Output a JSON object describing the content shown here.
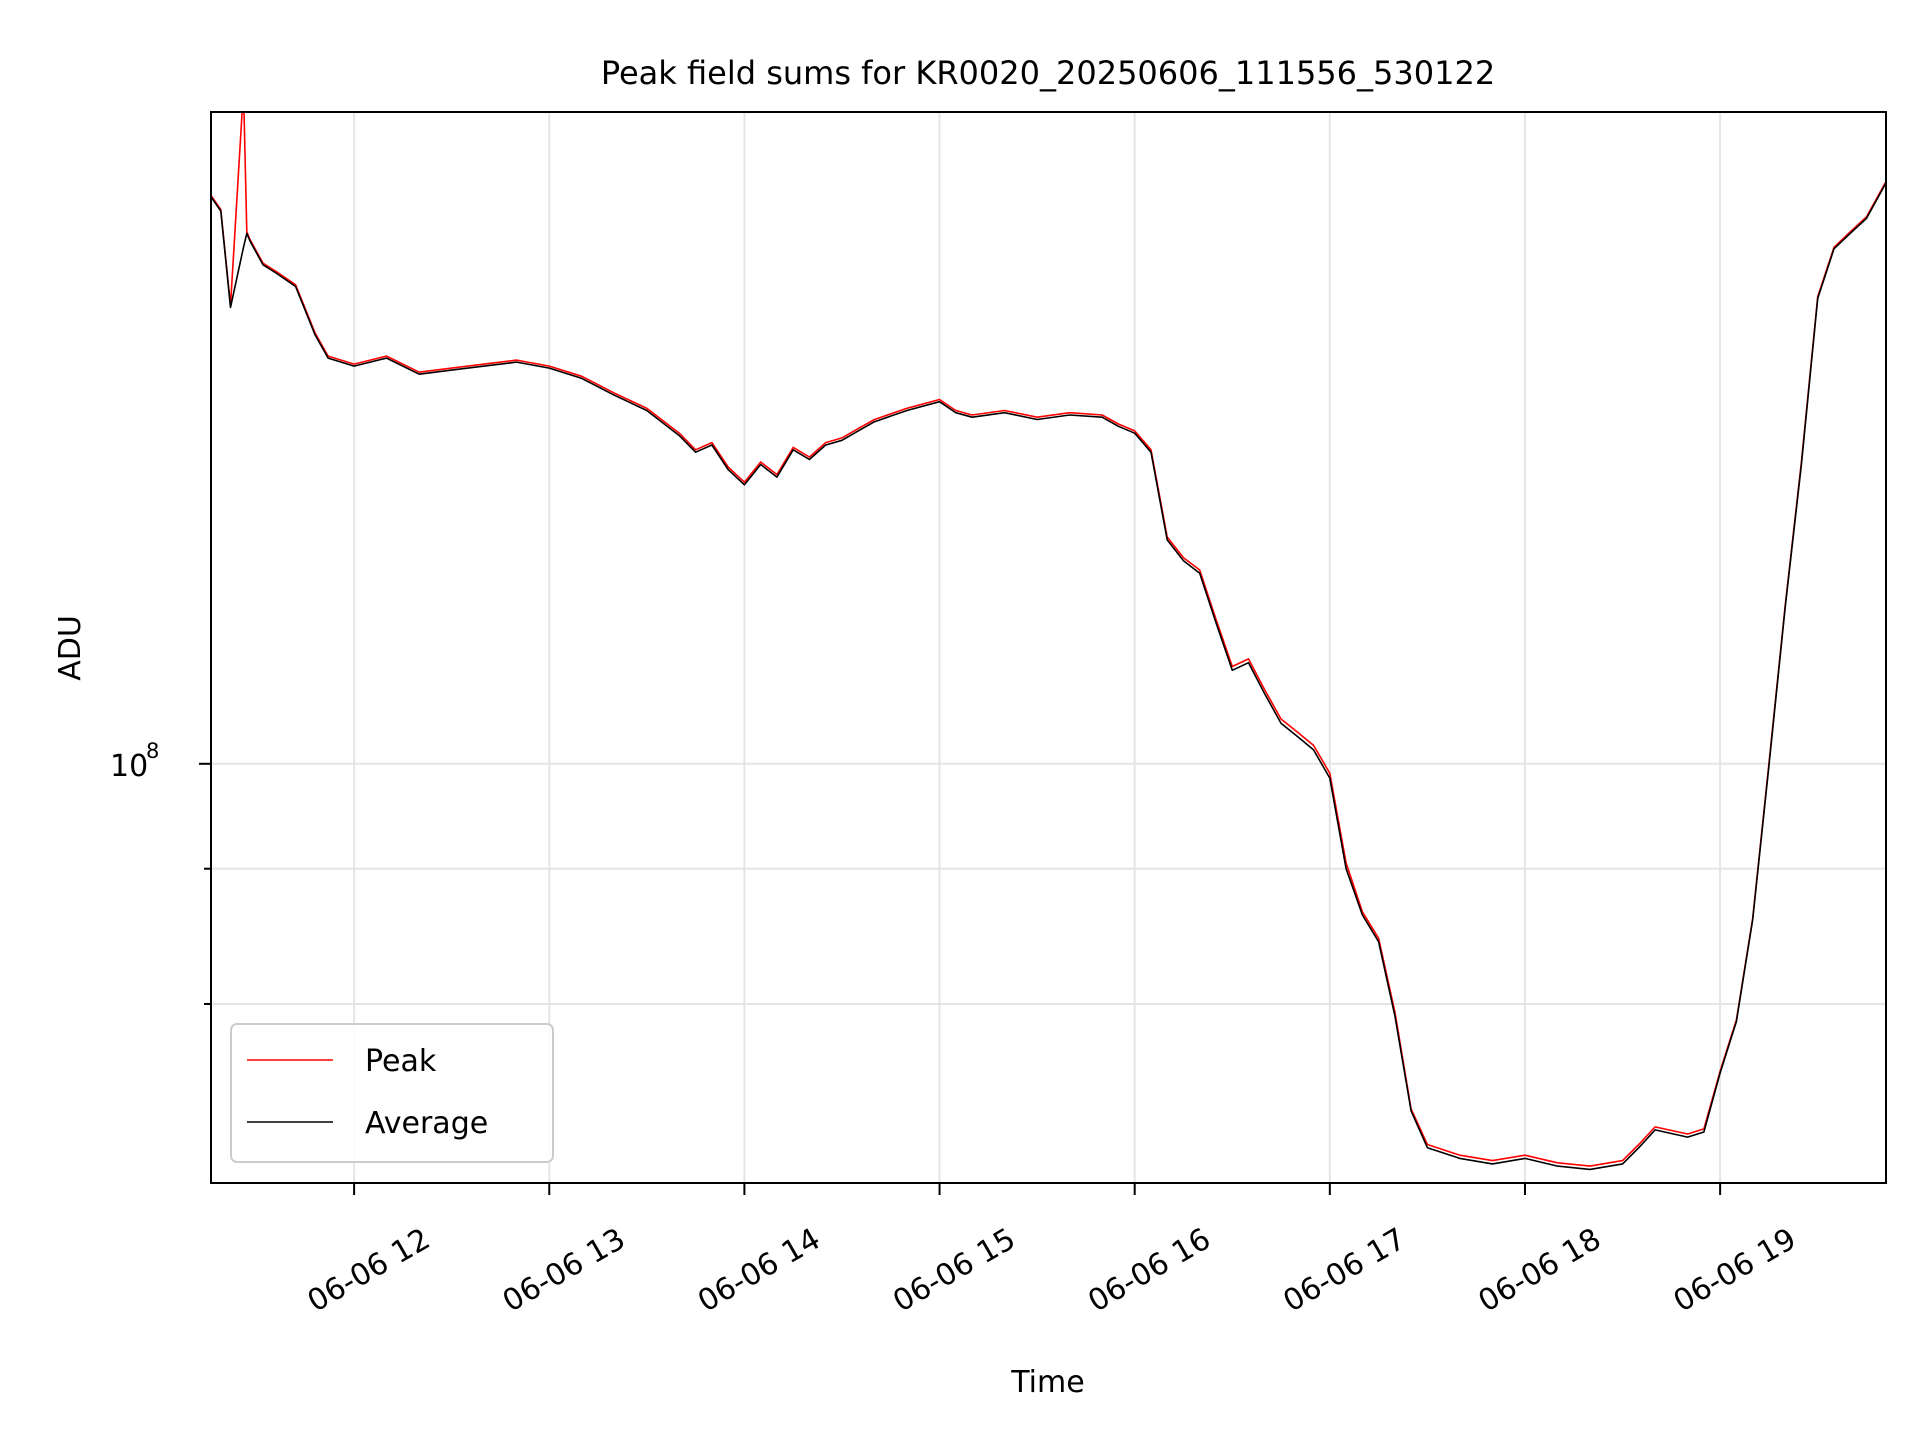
{
  "chart_data": {
    "type": "line",
    "title": "Peak field sums for KR0020_20250606_111556_530122",
    "xlabel": "Time",
    "ylabel": "ADU",
    "y_scale": "log",
    "x_format": "%m-%d %H",
    "xlim": [
      "2025-06-06 11:16",
      "2025-06-06 19:51"
    ],
    "ylim": [
      41000000,
      400000000
    ],
    "xticks": [
      {
        "value": "2025-06-06 12:00",
        "label": "06-06 12"
      },
      {
        "value": "2025-06-06 13:00",
        "label": "06-06 13"
      },
      {
        "value": "2025-06-06 14:00",
        "label": "06-06 14"
      },
      {
        "value": "2025-06-06 15:00",
        "label": "06-06 15"
      },
      {
        "value": "2025-06-06 16:00",
        "label": "06-06 16"
      },
      {
        "value": "2025-06-06 17:00",
        "label": "06-06 17"
      },
      {
        "value": "2025-06-06 18:00",
        "label": "06-06 18"
      },
      {
        "value": "2025-06-06 19:00",
        "label": "06-06 19"
      }
    ],
    "yticks_major": [
      {
        "value": 100000000,
        "base": "10",
        "exp": "8"
      }
    ],
    "yticks_minor": [
      60000000,
      80000000
    ],
    "grid": true,
    "legend_position": "lower-left",
    "series": [
      {
        "name": "Peak",
        "color": "#ff0000",
        "x": [
          "2025-06-06 11:16",
          "2025-06-06 11:19",
          "2025-06-06 11:22",
          "2025-06-06 11:26",
          "2025-06-06 11:27",
          "2025-06-06 11:28",
          "2025-06-06 11:32",
          "2025-06-06 11:36",
          "2025-06-06 11:42",
          "2025-06-06 11:48",
          "2025-06-06 11:52",
          "2025-06-06 11:56",
          "2025-06-06 12:00",
          "2025-06-06 12:10",
          "2025-06-06 12:20",
          "2025-06-06 12:30",
          "2025-06-06 12:40",
          "2025-06-06 12:50",
          "2025-06-06 13:00",
          "2025-06-06 13:10",
          "2025-06-06 13:20",
          "2025-06-06 13:30",
          "2025-06-06 13:40",
          "2025-06-06 13:45",
          "2025-06-06 13:50",
          "2025-06-06 13:55",
          "2025-06-06 14:00",
          "2025-06-06 14:05",
          "2025-06-06 14:10",
          "2025-06-06 14:15",
          "2025-06-06 14:20",
          "2025-06-06 14:25",
          "2025-06-06 14:30",
          "2025-06-06 14:35",
          "2025-06-06 14:40",
          "2025-06-06 14:50",
          "2025-06-06 15:00",
          "2025-06-06 15:05",
          "2025-06-06 15:10",
          "2025-06-06 15:20",
          "2025-06-06 15:30",
          "2025-06-06 15:40",
          "2025-06-06 15:50",
          "2025-06-06 15:55",
          "2025-06-06 16:00",
          "2025-06-06 16:05",
          "2025-06-06 16:10",
          "2025-06-06 16:15",
          "2025-06-06 16:20",
          "2025-06-06 16:25",
          "2025-06-06 16:30",
          "2025-06-06 16:35",
          "2025-06-06 16:40",
          "2025-06-06 16:45",
          "2025-06-06 16:50",
          "2025-06-06 16:55",
          "2025-06-06 17:00",
          "2025-06-06 17:05",
          "2025-06-06 17:10",
          "2025-06-06 17:15",
          "2025-06-06 17:20",
          "2025-06-06 17:25",
          "2025-06-06 17:30",
          "2025-06-06 17:40",
          "2025-06-06 17:50",
          "2025-06-06 18:00",
          "2025-06-06 18:10",
          "2025-06-06 18:20",
          "2025-06-06 18:30",
          "2025-06-06 18:35",
          "2025-06-06 18:40",
          "2025-06-06 18:50",
          "2025-06-06 18:55",
          "2025-06-06 19:00",
          "2025-06-06 19:05",
          "2025-06-06 19:10",
          "2025-06-06 19:15",
          "2025-06-06 19:20",
          "2025-06-06 19:25",
          "2025-06-06 19:30",
          "2025-06-06 19:35",
          "2025-06-06 19:40",
          "2025-06-06 19:45",
          "2025-06-06 19:51"
        ],
        "values": [
          335000000,
          325000000,
          265000000,
          420000000,
          310000000,
          305000000,
          290000000,
          285000000,
          277000000,
          250000000,
          238000000,
          236000000,
          234000000,
          238000000,
          230000000,
          232000000,
          234000000,
          236000000,
          233000000,
          228000000,
          220000000,
          213000000,
          202000000,
          195000000,
          198000000,
          188000000,
          182000000,
          190000000,
          185000000,
          196000000,
          192000000,
          198000000,
          200000000,
          204000000,
          208000000,
          213000000,
          217000000,
          212000000,
          210000000,
          212000000,
          209000000,
          211000000,
          210000000,
          206000000,
          203000000,
          195000000,
          162000000,
          155000000,
          151000000,
          136000000,
          123000000,
          125000000,
          117000000,
          110000000,
          107000000,
          104000000,
          98000000,
          81000000,
          73000000,
          69000000,
          59000000,
          48000000,
          44500000,
          43500000,
          43000000,
          43500000,
          42800000,
          42500000,
          43000000,
          44500000,
          46200000,
          45500000,
          46000000,
          52000000,
          58000000,
          72000000,
          100000000,
          140000000,
          190000000,
          270000000,
          300000000,
          310000000,
          320000000,
          345000000
        ]
      },
      {
        "name": "Average",
        "color": "#000000",
        "x": [
          "2025-06-06 11:16",
          "2025-06-06 11:19",
          "2025-06-06 11:22",
          "2025-06-06 11:26",
          "2025-06-06 11:27",
          "2025-06-06 11:28",
          "2025-06-06 11:32",
          "2025-06-06 11:36",
          "2025-06-06 11:42",
          "2025-06-06 11:48",
          "2025-06-06 11:52",
          "2025-06-06 11:56",
          "2025-06-06 12:00",
          "2025-06-06 12:10",
          "2025-06-06 12:20",
          "2025-06-06 12:30",
          "2025-06-06 12:40",
          "2025-06-06 12:50",
          "2025-06-06 13:00",
          "2025-06-06 13:10",
          "2025-06-06 13:20",
          "2025-06-06 13:30",
          "2025-06-06 13:40",
          "2025-06-06 13:45",
          "2025-06-06 13:50",
          "2025-06-06 13:55",
          "2025-06-06 14:00",
          "2025-06-06 14:05",
          "2025-06-06 14:10",
          "2025-06-06 14:15",
          "2025-06-06 14:20",
          "2025-06-06 14:25",
          "2025-06-06 14:30",
          "2025-06-06 14:35",
          "2025-06-06 14:40",
          "2025-06-06 14:50",
          "2025-06-06 15:00",
          "2025-06-06 15:05",
          "2025-06-06 15:10",
          "2025-06-06 15:20",
          "2025-06-06 15:30",
          "2025-06-06 15:40",
          "2025-06-06 15:50",
          "2025-06-06 15:55",
          "2025-06-06 16:00",
          "2025-06-06 16:05",
          "2025-06-06 16:10",
          "2025-06-06 16:15",
          "2025-06-06 16:20",
          "2025-06-06 16:25",
          "2025-06-06 16:30",
          "2025-06-06 16:35",
          "2025-06-06 16:40",
          "2025-06-06 16:45",
          "2025-06-06 16:50",
          "2025-06-06 16:55",
          "2025-06-06 17:00",
          "2025-06-06 17:05",
          "2025-06-06 17:10",
          "2025-06-06 17:15",
          "2025-06-06 17:20",
          "2025-06-06 17:25",
          "2025-06-06 17:30",
          "2025-06-06 17:40",
          "2025-06-06 17:50",
          "2025-06-06 18:00",
          "2025-06-06 18:10",
          "2025-06-06 18:20",
          "2025-06-06 18:30",
          "2025-06-06 18:35",
          "2025-06-06 18:40",
          "2025-06-06 18:50",
          "2025-06-06 18:55",
          "2025-06-06 19:00",
          "2025-06-06 19:05",
          "2025-06-06 19:10",
          "2025-06-06 19:15",
          "2025-06-06 19:20",
          "2025-06-06 19:25",
          "2025-06-06 19:30",
          "2025-06-06 19:35",
          "2025-06-06 19:40",
          "2025-06-06 19:45",
          "2025-06-06 19:51"
        ],
        "values": [
          334000000,
          324000000,
          264000000,
          300000000,
          309000000,
          304000000,
          289000000,
          284000000,
          276000000,
          249000000,
          237000000,
          235000000,
          233000000,
          237000000,
          229000000,
          231000000,
          233000000,
          235000000,
          232000000,
          227000000,
          219000000,
          212000000,
          201000000,
          194000000,
          197000000,
          187000000,
          181000000,
          189000000,
          184000000,
          195000000,
          191000000,
          197000000,
          199000000,
          203000000,
          207000000,
          212000000,
          216000000,
          211000000,
          209000000,
          211000000,
          208000000,
          210000000,
          209000000,
          205000000,
          202000000,
          194000000,
          161000000,
          154000000,
          150000000,
          135000000,
          122000000,
          124000000,
          116000000,
          109000000,
          106000000,
          103000000,
          97000000,
          80000000,
          72500000,
          68500000,
          58500000,
          47800000,
          44200000,
          43200000,
          42700000,
          43200000,
          42500000,
          42200000,
          42700000,
          44200000,
          45900000,
          45200000,
          45700000,
          51800000,
          57800000,
          71800000,
          99500000,
          139500000,
          189000000,
          269000000,
          299000000,
          309000000,
          319000000,
          344000000
        ]
      }
    ]
  }
}
